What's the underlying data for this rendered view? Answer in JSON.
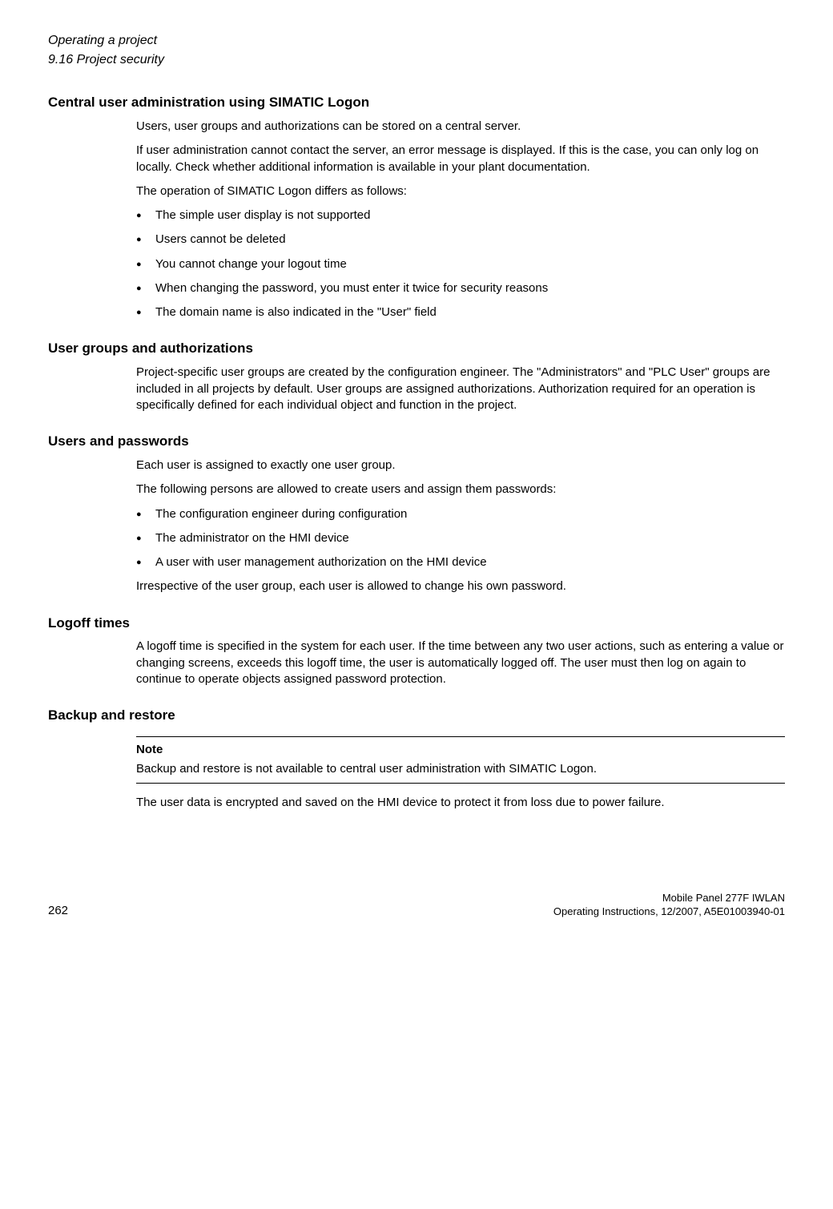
{
  "header": {
    "chapter_title": "Operating a project",
    "section_number": "9.16 Project security"
  },
  "section1": {
    "heading": "Central user administration using SIMATIC Logon",
    "p1": "Users, user groups and authorizations can be stored on a central server.",
    "p2": "If user administration cannot contact the server, an error message is displayed. If this is the case, you can only log on locally. Check whether additional information is available in your plant documentation.",
    "p3": "The operation of SIMATIC Logon differs as follows:",
    "bullets": [
      "The simple user display is not supported",
      "Users cannot be deleted",
      "You cannot change your logout time",
      "When changing the password, you must enter it twice for security reasons",
      "The domain name is also indicated in the \"User\" field"
    ]
  },
  "section2": {
    "heading": "User groups and authorizations",
    "p1": "Project-specific user groups are created by the configuration engineer. The \"Administrators\" and \"PLC User\" groups are included in all projects by default. User groups are assigned authorizations. Authorization required for an operation is specifically defined for each individual object and function in the project."
  },
  "section3": {
    "heading": "Users and passwords",
    "p1": "Each user is assigned to exactly one user group.",
    "p2": "The following persons are allowed to create users and assign them passwords:",
    "bullets": [
      "The configuration engineer during configuration",
      "The administrator on the HMI device",
      "A user with user management authorization on the HMI device"
    ],
    "p3": "Irrespective of the user group, each user is allowed to change his own password."
  },
  "section4": {
    "heading": "Logoff times",
    "p1": "A logoff time is specified in the system for each user. If the time between any two user actions, such as entering a value or changing screens, exceeds this logoff time, the user is automatically logged off. The user must then log on again to continue to operate objects assigned password protection."
  },
  "section5": {
    "heading": "Backup and restore",
    "note_label": "Note",
    "note_text": "Backup and restore is not available to central user administration with SIMATIC Logon.",
    "p1": "The user data is encrypted and saved on the HMI device to protect it from loss due to power failure."
  },
  "footer": {
    "page_number": "262",
    "product": "Mobile Panel 277F IWLAN",
    "docinfo": "Operating Instructions, 12/2007, A5E01003940-01"
  }
}
